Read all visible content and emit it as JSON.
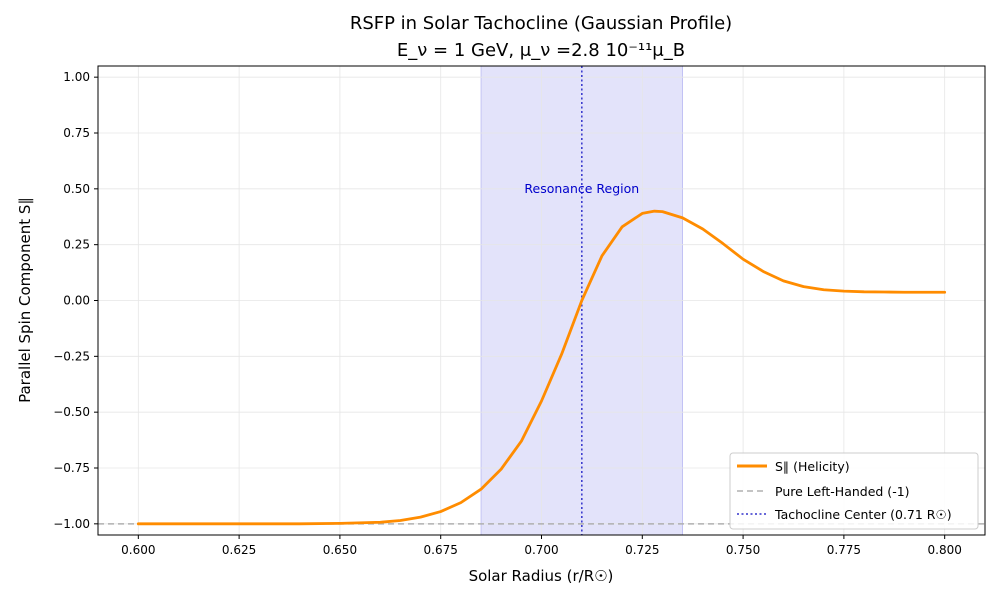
{
  "chart_data": {
    "type": "line",
    "title_line1": "RSFP in Solar Tachocline (Gaussian Profile)",
    "title_line2": "E_ν = 1 GeV, μ_ν =2.8  10⁻¹¹μ_B",
    "xlabel": "Solar Radius (r/R☉)",
    "ylabel": "Parallel Spin Component S∥",
    "xlim": [
      0.59,
      0.81
    ],
    "ylim": [
      -1.05,
      1.05
    ],
    "xticks": [
      0.6,
      0.625,
      0.65,
      0.675,
      0.7,
      0.725,
      0.75,
      0.775,
      0.8
    ],
    "xtick_labels": [
      "0.600",
      "0.625",
      "0.650",
      "0.675",
      "0.700",
      "0.725",
      "0.750",
      "0.775",
      "0.800"
    ],
    "yticks": [
      -1.0,
      -0.75,
      -0.5,
      -0.25,
      0.0,
      0.25,
      0.5,
      0.75,
      1.0
    ],
    "ytick_labels": [
      "−1.00",
      "−0.75",
      "−0.50",
      "−0.25",
      "0.00",
      "0.25",
      "0.50",
      "0.75",
      "1.00"
    ],
    "grid": true,
    "series": [
      {
        "name": "S∥ (Helicity)",
        "color": "#ff8c00",
        "x": [
          0.6,
          0.62,
          0.64,
          0.65,
          0.66,
          0.665,
          0.67,
          0.675,
          0.68,
          0.685,
          0.69,
          0.695,
          0.7,
          0.705,
          0.71,
          0.715,
          0.72,
          0.725,
          0.728,
          0.73,
          0.735,
          0.74,
          0.745,
          0.75,
          0.755,
          0.76,
          0.765,
          0.77,
          0.775,
          0.78,
          0.785,
          0.79,
          0.795,
          0.8
        ],
        "y": [
          -1.0,
          -1.0,
          -1.0,
          -0.998,
          -0.993,
          -0.985,
          -0.97,
          -0.945,
          -0.905,
          -0.845,
          -0.755,
          -0.63,
          -0.45,
          -0.24,
          0.0,
          0.2,
          0.33,
          0.39,
          0.4,
          0.398,
          0.37,
          0.32,
          0.255,
          0.185,
          0.13,
          0.088,
          0.062,
          0.048,
          0.042,
          0.039,
          0.038,
          0.037,
          0.037,
          0.037
        ]
      }
    ],
    "reference_lines": [
      {
        "name": "Pure Left-Handed (-1)",
        "orientation": "horizontal",
        "value": -1.0,
        "color": "#b0b0b0",
        "style": "dashed"
      },
      {
        "name": "Tachocline Center (0.71 R☉)",
        "orientation": "vertical",
        "value": 0.71,
        "color": "#3333cc",
        "style": "dotted"
      }
    ],
    "shaded_region": {
      "x_from": 0.685,
      "x_to": 0.735,
      "color": "#c8c8f5"
    },
    "annotations": [
      {
        "text": "Resonance Region",
        "x": 0.71,
        "y": 0.5,
        "color": "#0000cc"
      }
    ],
    "legend_position": "lower-right"
  }
}
